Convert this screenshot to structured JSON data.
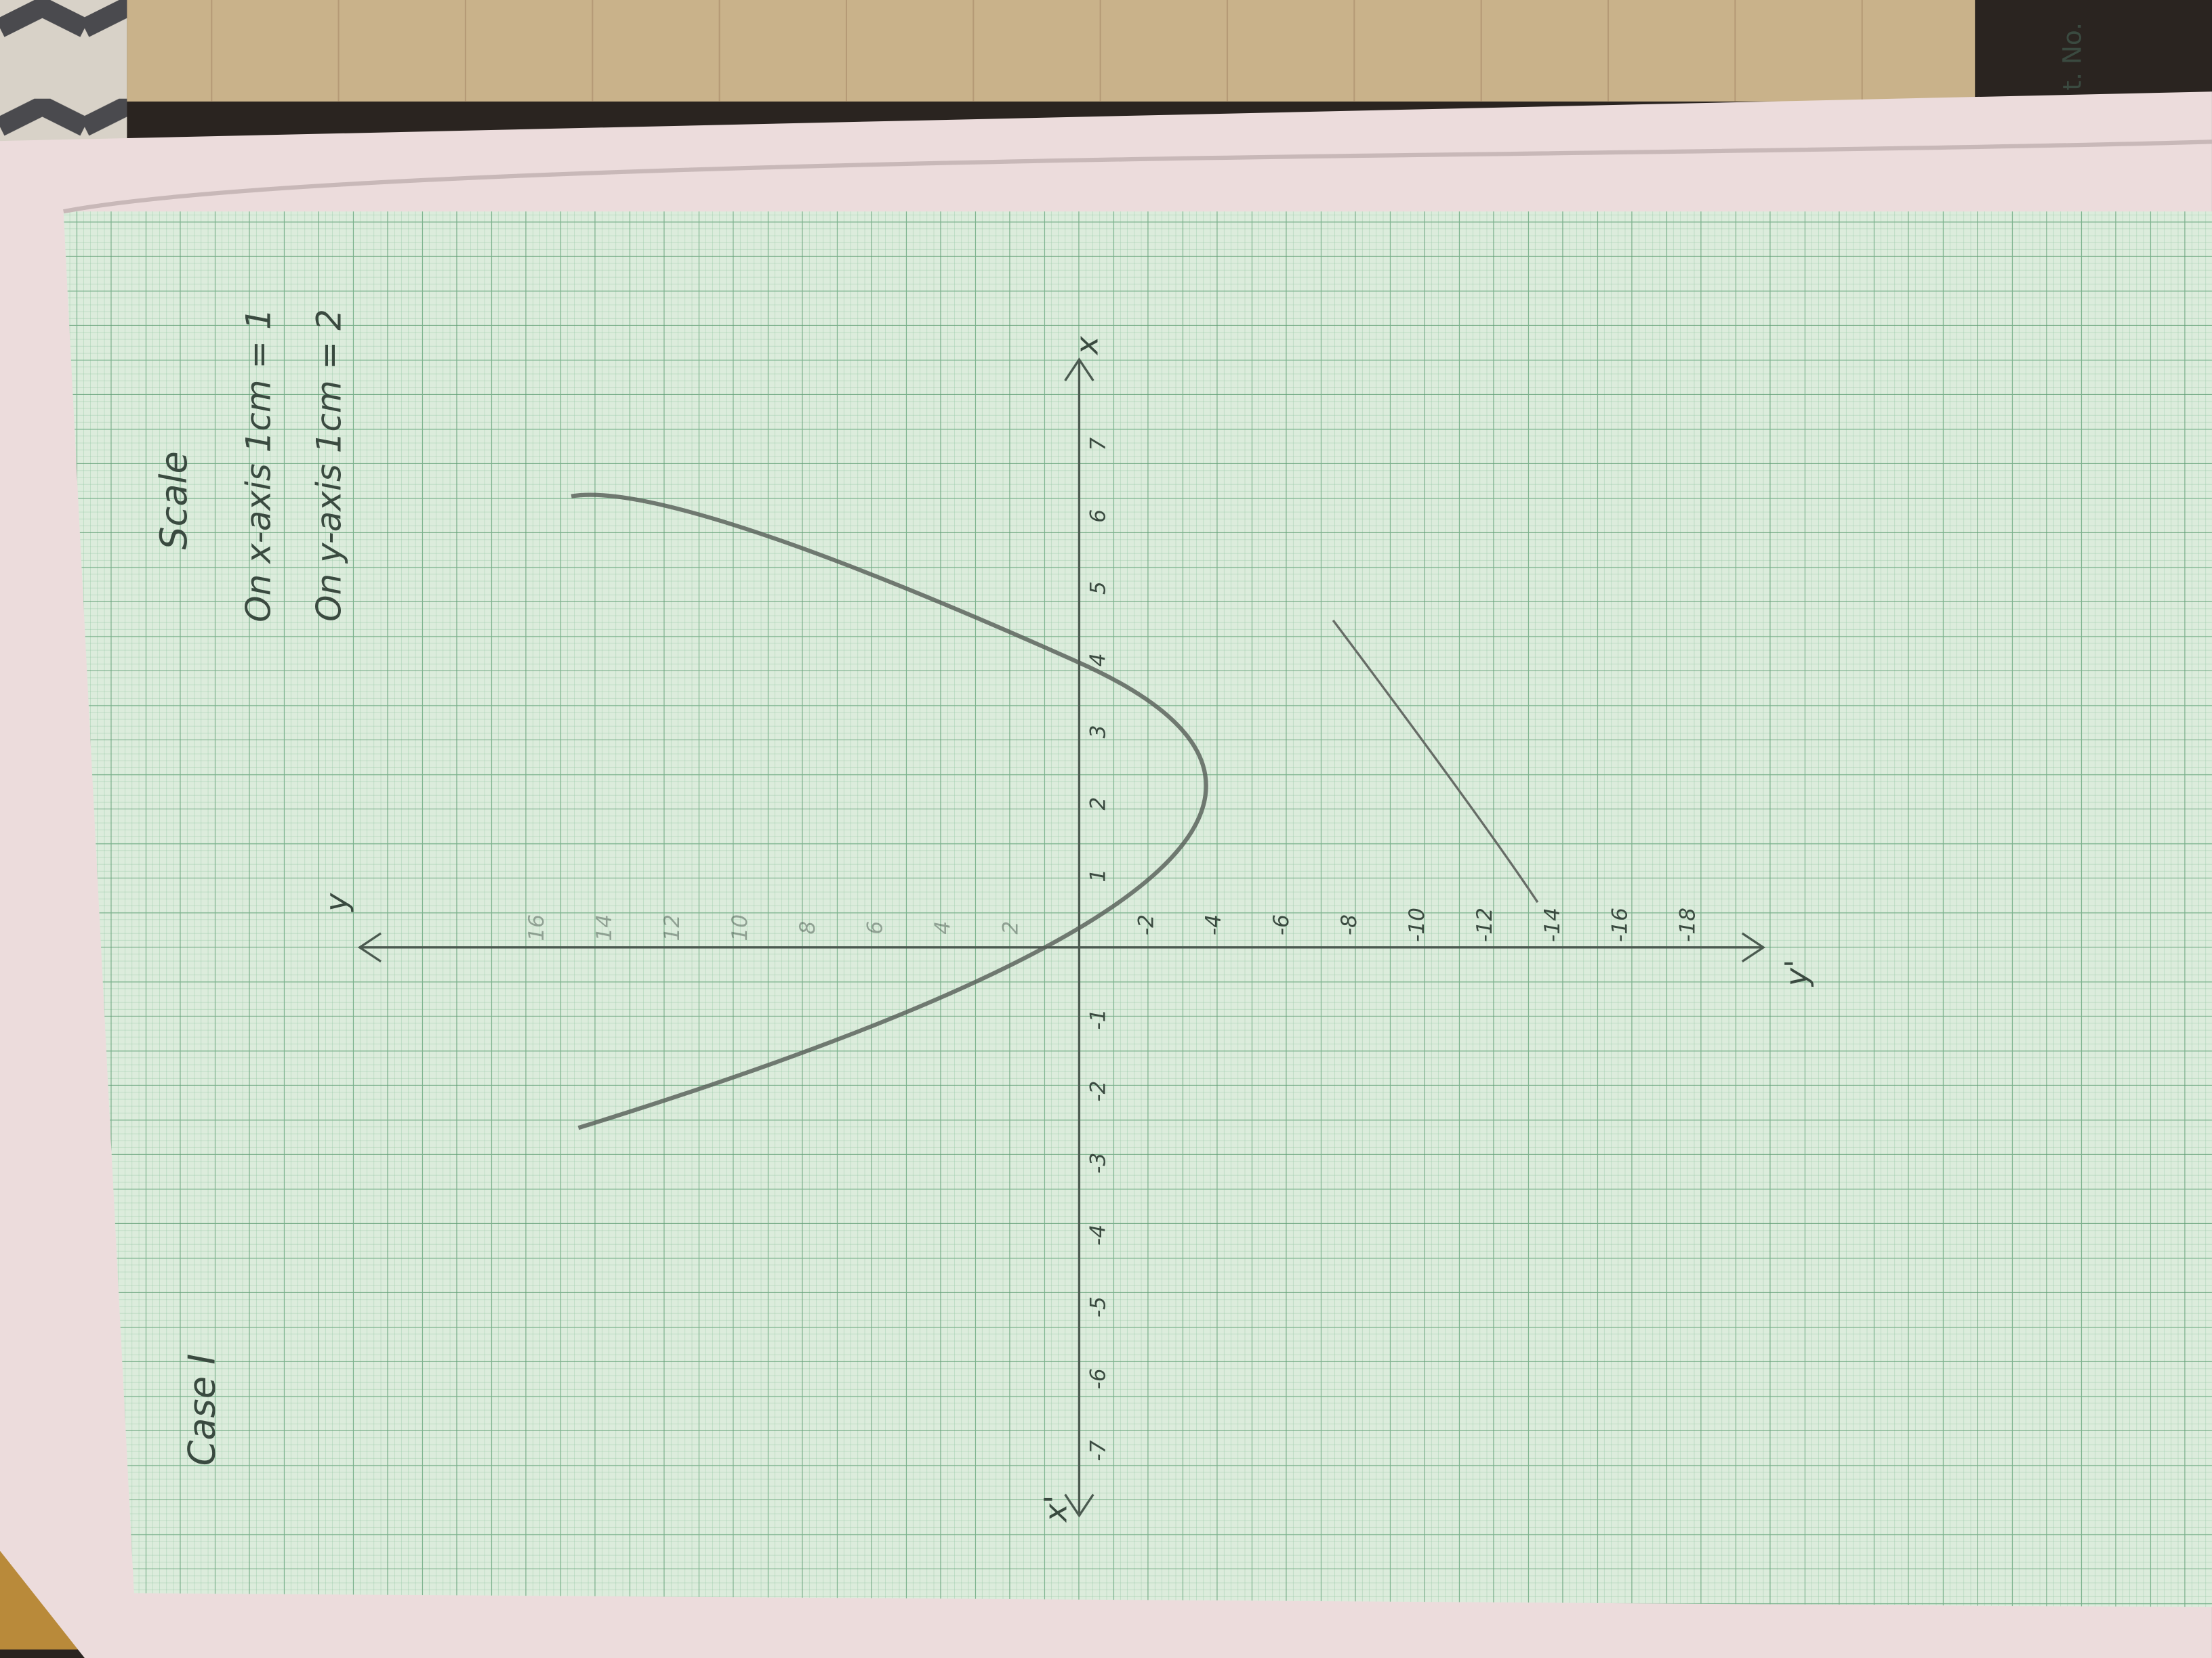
{
  "header": {
    "title": "Case I",
    "ruled_note": "t. No."
  },
  "scale": {
    "title": "Scale",
    "x_axis": "On x-axis 1cm = 1",
    "y_axis": "On y-axis 1cm = 2"
  },
  "axes": {
    "x": "x",
    "x_neg": "x'",
    "y": "y",
    "y_neg": "y'"
  },
  "x_tick_labels_pos": [
    "1",
    "2",
    "3",
    "4",
    "5",
    "6",
    "7"
  ],
  "x_tick_labels_neg": [
    "-1",
    "-2",
    "-3",
    "-4",
    "-5",
    "-6",
    "-7"
  ],
  "y_tick_labels_pos": [
    "2",
    "4",
    "6",
    "8",
    "10",
    "12",
    "14",
    "16"
  ],
  "y_tick_labels_neg": [
    "-2",
    "-4",
    "-6",
    "-8",
    "-10",
    "-12",
    "-14",
    "-16",
    "-18"
  ]
}
